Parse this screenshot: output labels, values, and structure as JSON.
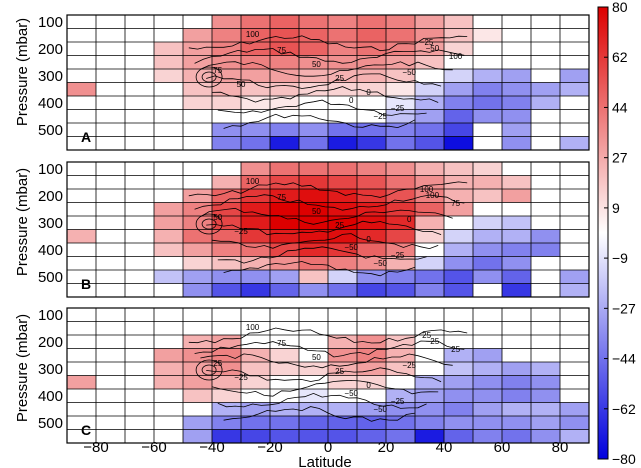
{
  "chart_data": {
    "type": "heatmap",
    "xlabel": "Latitude",
    "ylabel": "Pressure (mbar)",
    "x_ticks": [
      "−80",
      "−60",
      "−40",
      "−20",
      "0",
      "20",
      "40",
      "60",
      "80"
    ],
    "y_ticks": [
      "100",
      "200",
      "300",
      "400",
      "500"
    ],
    "xlim": [
      -90,
      90
    ],
    "ylim": [
      550,
      100
    ],
    "colorbar": {
      "ticks": [
        "80",
        "62",
        "44",
        "27",
        "9",
        "−9",
        "−27",
        "−44",
        "−62",
        "−80"
      ],
      "range": [
        -80,
        80
      ],
      "colors": {
        "low": "#0000dd",
        "mid": "#ffffff",
        "high": "#dd0000"
      }
    },
    "lat_bins": [
      -90,
      -80,
      -70,
      -60,
      -50,
      -40,
      -30,
      -20,
      -10,
      0,
      10,
      20,
      30,
      40,
      50,
      60,
      70,
      80,
      90
    ],
    "pressure_bins": [
      75,
      125,
      175,
      225,
      275,
      325,
      375,
      425,
      475,
      525,
      575
    ],
    "panels": [
      {
        "label": "A",
        "contour_labels": [
          "100",
          "75",
          "50",
          "25",
          "0",
          "−25",
          "−25",
          "100",
          "75",
          "50",
          "0",
          "−25",
          "−50",
          "−50"
        ],
        "grid": [
          [
            0,
            0,
            0,
            0,
            0,
            30,
            40,
            45,
            40,
            35,
            40,
            35,
            25,
            15,
            0,
            0,
            0,
            0
          ],
          [
            0,
            0,
            0,
            0,
            25,
            35,
            45,
            50,
            45,
            40,
            45,
            40,
            30,
            15,
            5,
            0,
            0,
            0
          ],
          [
            0,
            0,
            0,
            15,
            25,
            35,
            45,
            50,
            45,
            35,
            40,
            35,
            25,
            10,
            0,
            0,
            0,
            0
          ],
          [
            0,
            0,
            0,
            15,
            25,
            30,
            35,
            35,
            30,
            30,
            30,
            25,
            15,
            0,
            0,
            0,
            0,
            0
          ],
          [
            0,
            0,
            0,
            10,
            20,
            25,
            25,
            25,
            20,
            20,
            20,
            15,
            0,
            -10,
            -20,
            -25,
            0,
            -25
          ],
          [
            30,
            0,
            0,
            0,
            15,
            20,
            15,
            15,
            10,
            10,
            10,
            5,
            -10,
            -25,
            -35,
            -30,
            -25,
            -20
          ],
          [
            0,
            0,
            0,
            0,
            10,
            10,
            5,
            5,
            0,
            0,
            0,
            -5,
            -20,
            -35,
            -40,
            -35,
            -20,
            0
          ],
          [
            0,
            0,
            0,
            0,
            0,
            0,
            0,
            0,
            0,
            0,
            0,
            -15,
            -25,
            -45,
            -30,
            -30,
            0,
            0
          ],
          [
            0,
            0,
            0,
            0,
            0,
            -30,
            -30,
            -35,
            -30,
            -40,
            -40,
            -35,
            -40,
            -55,
            0,
            -25,
            0,
            0
          ],
          [
            0,
            0,
            0,
            0,
            0,
            -35,
            -40,
            -70,
            -40,
            -70,
            -60,
            -40,
            -50,
            -75,
            0,
            -30,
            0,
            -20
          ],
          [
            0,
            0,
            0,
            0,
            0,
            0,
            0,
            0,
            0,
            0,
            0,
            0,
            0,
            0,
            0,
            0,
            0,
            0
          ]
        ]
      },
      {
        "label": "B",
        "contour_labels": [
          "100",
          "75",
          "50",
          "25",
          "0",
          "−25",
          "100",
          "75",
          "50",
          "−25",
          "−50",
          "−50",
          "0",
          "100"
        ],
        "grid": [
          [
            0,
            0,
            0,
            0,
            0,
            0,
            30,
            40,
            40,
            40,
            35,
            30,
            20,
            15,
            10,
            0,
            0,
            0
          ],
          [
            0,
            0,
            0,
            0,
            0,
            20,
            45,
            55,
            60,
            55,
            50,
            40,
            30,
            20,
            20,
            15,
            0,
            0
          ],
          [
            0,
            0,
            0,
            0,
            25,
            45,
            60,
            70,
            75,
            70,
            60,
            50,
            35,
            20,
            15,
            25,
            0,
            0
          ],
          [
            0,
            0,
            0,
            25,
            35,
            55,
            70,
            80,
            80,
            75,
            70,
            60,
            45,
            25,
            0,
            0,
            0,
            0
          ],
          [
            0,
            0,
            0,
            25,
            35,
            55,
            70,
            80,
            80,
            80,
            75,
            65,
            20,
            0,
            -10,
            -15,
            0,
            0
          ],
          [
            20,
            0,
            0,
            20,
            40,
            45,
            60,
            70,
            75,
            75,
            65,
            55,
            10,
            -10,
            -20,
            -20,
            -30,
            0
          ],
          [
            0,
            0,
            0,
            15,
            25,
            35,
            40,
            55,
            65,
            60,
            45,
            35,
            0,
            -20,
            -30,
            -35,
            -35,
            0
          ],
          [
            0,
            0,
            0,
            0,
            10,
            15,
            20,
            30,
            40,
            35,
            30,
            20,
            -10,
            -30,
            -40,
            -30,
            0,
            0
          ],
          [
            0,
            0,
            0,
            -15,
            -25,
            -30,
            -30,
            -25,
            15,
            -10,
            -30,
            -35,
            -40,
            -50,
            -30,
            -45,
            0,
            -25
          ],
          [
            0,
            0,
            0,
            0,
            -30,
            -50,
            -60,
            -45,
            -30,
            -40,
            -55,
            -50,
            -35,
            -50,
            0,
            -60,
            0,
            -20
          ],
          [
            0,
            0,
            0,
            0,
            0,
            0,
            0,
            0,
            0,
            0,
            0,
            0,
            0,
            0,
            0,
            0,
            0,
            0
          ]
        ]
      },
      {
        "label": "C",
        "contour_labels": [
          "100",
          "75",
          "50",
          "25",
          "0",
          "−25",
          "25",
          "25",
          "25",
          "−25",
          "−50",
          "−50",
          "−25",
          "−25"
        ],
        "grid": [
          [
            0,
            0,
            0,
            0,
            0,
            0,
            0,
            0,
            0,
            0,
            0,
            0,
            0,
            0,
            0,
            0,
            0,
            0
          ],
          [
            0,
            0,
            0,
            0,
            0,
            0,
            0,
            0,
            0,
            0,
            0,
            0,
            0,
            0,
            0,
            0,
            0,
            0
          ],
          [
            0,
            0,
            0,
            0,
            20,
            25,
            0,
            0,
            0,
            20,
            30,
            15,
            0,
            0,
            0,
            0,
            0,
            0
          ],
          [
            0,
            0,
            0,
            25,
            30,
            35,
            20,
            10,
            0,
            30,
            35,
            20,
            0,
            -20,
            -25,
            0,
            0,
            0
          ],
          [
            0,
            0,
            0,
            20,
            25,
            30,
            15,
            10,
            10,
            20,
            25,
            15,
            0,
            -15,
            -20,
            -25,
            -20,
            0
          ],
          [
            25,
            0,
            0,
            20,
            25,
            20,
            10,
            0,
            0,
            10,
            10,
            0,
            -20,
            -25,
            -30,
            -35,
            -30,
            0
          ],
          [
            0,
            0,
            0,
            0,
            15,
            10,
            0,
            0,
            -5,
            0,
            0,
            -20,
            -25,
            -30,
            -30,
            -35,
            -30,
            0
          ],
          [
            0,
            0,
            0,
            0,
            0,
            -20,
            -25,
            -20,
            -20,
            -20,
            -25,
            -30,
            -30,
            -35,
            -25,
            -20,
            -20,
            -25
          ],
          [
            0,
            0,
            0,
            0,
            -25,
            -35,
            -40,
            -40,
            -45,
            -45,
            -45,
            -40,
            -35,
            -30,
            -30,
            -30,
            -25,
            -30
          ],
          [
            0,
            0,
            0,
            0,
            -25,
            -60,
            -55,
            -50,
            -50,
            -50,
            -45,
            -40,
            -70,
            -45,
            -35,
            -40,
            -30,
            -20
          ],
          [
            0,
            0,
            0,
            0,
            0,
            0,
            0,
            0,
            0,
            0,
            0,
            0,
            0,
            0,
            0,
            0,
            0,
            0
          ]
        ]
      }
    ]
  }
}
